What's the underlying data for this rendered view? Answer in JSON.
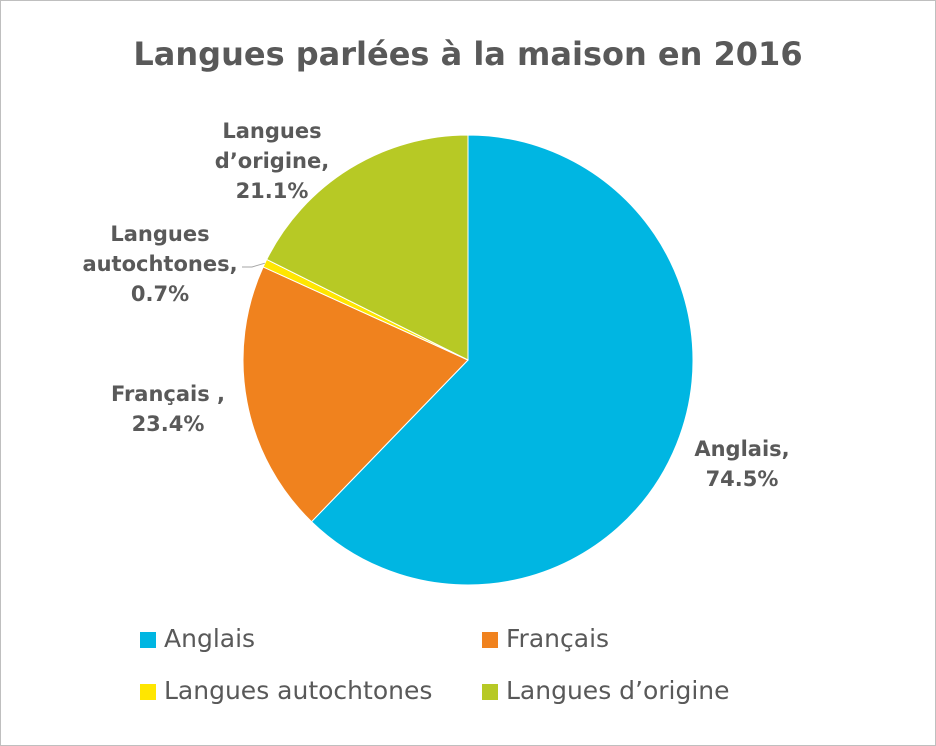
{
  "chart_data": {
    "type": "pie",
    "title": "Langues parlées à la maison en 2016",
    "categories": [
      "Anglais",
      "Français",
      "Langues autochtones",
      "Langues d’origine"
    ],
    "values": [
      74.5,
      23.4,
      0.7,
      21.1
    ],
    "value_labels": [
      "74.5%",
      "23.4%",
      "0.7%",
      "21.1%"
    ],
    "data_label_names": [
      [
        "Anglais,"
      ],
      [
        "Français ,"
      ],
      [
        "Langues",
        "autochtones,"
      ],
      [
        "Langues",
        "d’origine,"
      ]
    ],
    "colors": [
      "#00b6e2",
      "#f0821e",
      "#ffe600",
      "#b7c925"
    ],
    "legend": "bottom"
  }
}
